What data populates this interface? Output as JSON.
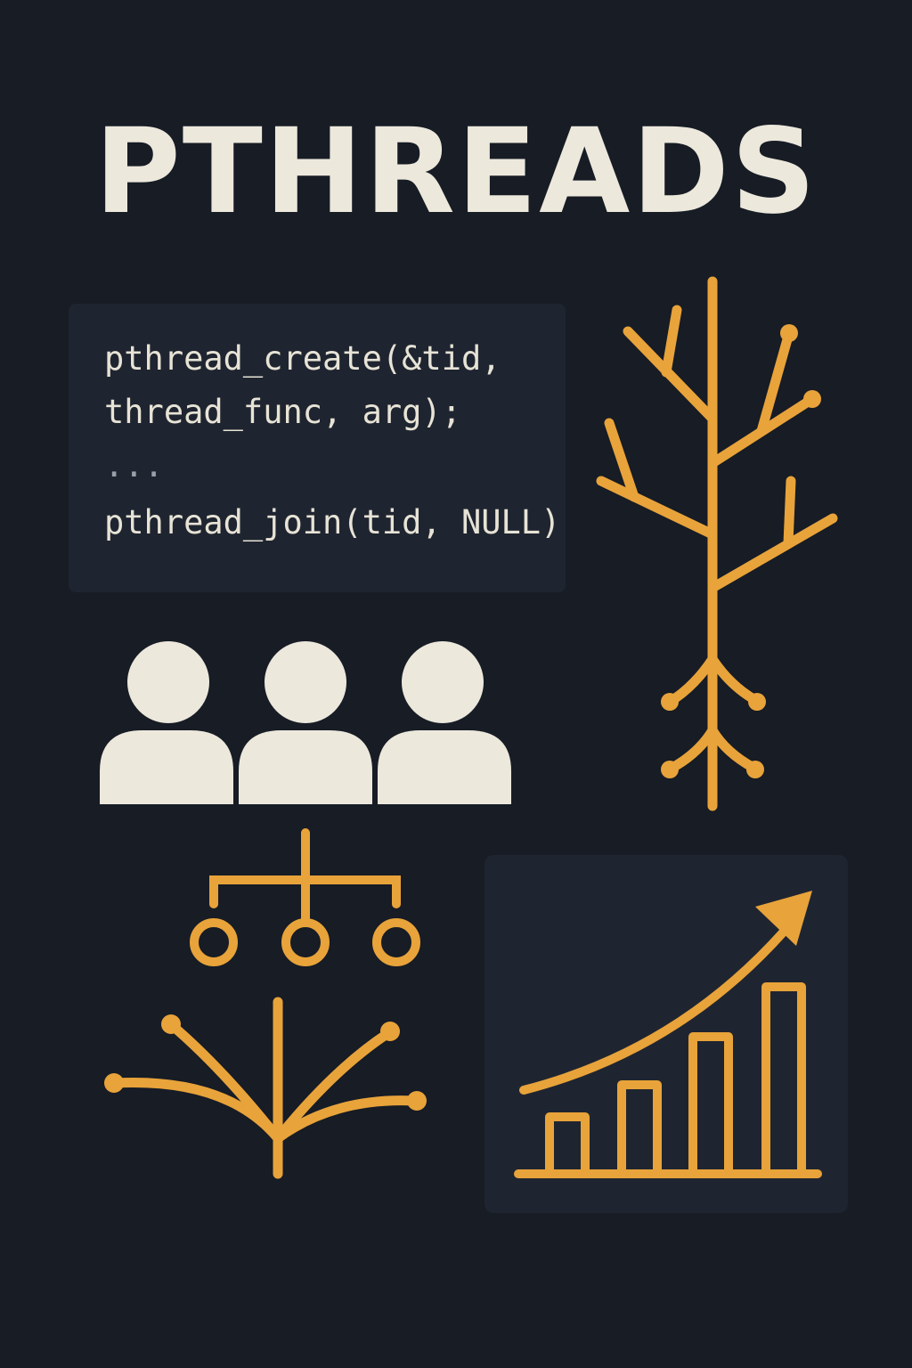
{
  "title": "PTHREADS",
  "code": {
    "lines": [
      "pthread_create(&tid,",
      "thread_func, arg);",
      "...",
      "pthread_join(tid, NULL)"
    ]
  },
  "colors": {
    "background": "#171c25",
    "panel": "#1f2530",
    "accent": "#e8a33a",
    "cream": "#ece8dc"
  },
  "icons": [
    "branching-tree-icon",
    "people-group-icon",
    "hierarchy-nodes-icon",
    "fork-branch-icon",
    "growth-bar-chart-icon"
  ]
}
